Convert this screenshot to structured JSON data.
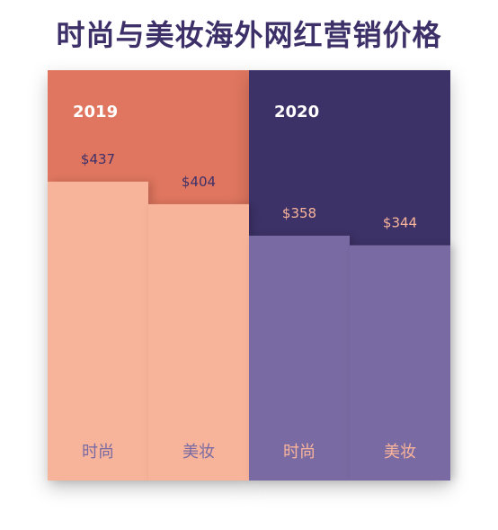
{
  "chart_data": {
    "type": "bar",
    "title": "时尚与美妆海外网红营销价格",
    "groups": [
      {
        "name": "2019",
        "color": "#e0765e",
        "bar_color": "#f8b49a",
        "label_color": "#3d3068",
        "category_color": "#7a6aa3",
        "bars": [
          {
            "category": "时尚",
            "value": 437,
            "label": "$437"
          },
          {
            "category": "美妆",
            "value": 404,
            "label": "$404"
          }
        ]
      },
      {
        "name": "2020",
        "color": "#3d3068",
        "bar_color": "#7a6aa3",
        "label_color": "#f8b49a",
        "category_color": "#f8b49a",
        "bars": [
          {
            "category": "时尚",
            "value": 358,
            "label": "$358"
          },
          {
            "category": "美妆",
            "value": 344,
            "label": "$344"
          }
        ]
      }
    ],
    "ylim": [
      0,
      600
    ]
  }
}
